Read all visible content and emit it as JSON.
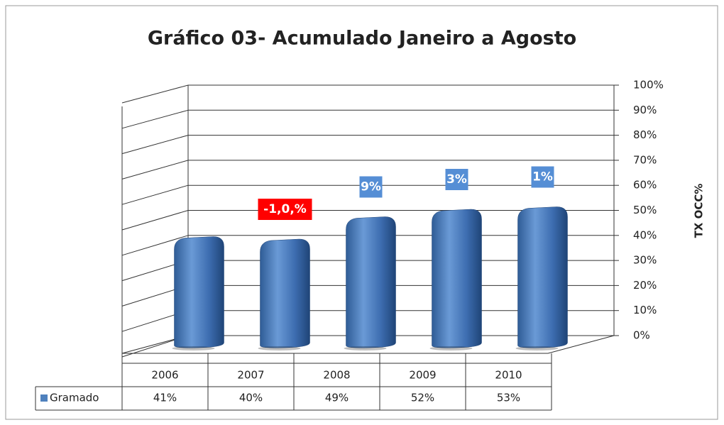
{
  "chart_data": {
    "type": "bar3d",
    "title": "Gráfico 03- Acumulado Janeiro a Agosto",
    "y_axis_label": "TX OCC%",
    "categories": [
      "2006",
      "2007",
      "2008",
      "2009",
      "2010"
    ],
    "series": [
      {
        "name": "Gramado",
        "color": "#4f81bd",
        "values": [
          41,
          40,
          49,
          52,
          53
        ],
        "value_labels": [
          "41%",
          "40%",
          "49%",
          "52%",
          "53%"
        ]
      }
    ],
    "ylim": [
      0,
      100
    ],
    "yticks": [
      {
        "value": 0,
        "label": "0%"
      },
      {
        "value": 10,
        "label": "10%"
      },
      {
        "value": 20,
        "label": "20%"
      },
      {
        "value": 30,
        "label": "30%"
      },
      {
        "value": 40,
        "label": "40%"
      },
      {
        "value": 50,
        "label": "50%"
      },
      {
        "value": 60,
        "label": "60%"
      },
      {
        "value": 70,
        "label": "70%"
      },
      {
        "value": 80,
        "label": "80%"
      },
      {
        "value": 90,
        "label": "90%"
      },
      {
        "value": 100,
        "label": "100%"
      }
    ],
    "grid": true,
    "annotations": [
      {
        "x": "2007",
        "text": "-1,0,%",
        "color": "#ff0000"
      },
      {
        "x": "2008",
        "text": "9%",
        "color": "#558ed5"
      },
      {
        "x": "2009",
        "text": "3%",
        "color": "#558ed5"
      },
      {
        "x": "2010",
        "text": "1%",
        "color": "#558ed5"
      }
    ]
  }
}
